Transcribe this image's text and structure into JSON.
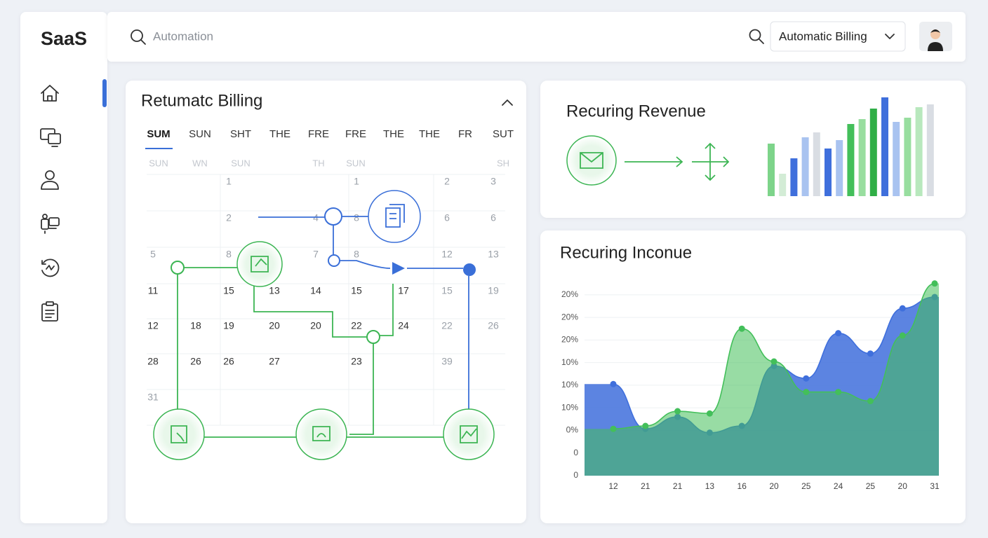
{
  "sidebar": {
    "logo": "SaaS"
  },
  "header": {
    "search_placeholder": "Automation",
    "dropdown": "Automatic Billing"
  },
  "calendar": {
    "title": "Retumatc Billing",
    "weekdays": [
      "SUM",
      "SUN",
      "SHT",
      "THE",
      "FRE",
      "FRE",
      "THE",
      "THE",
      "FR",
      "SUT"
    ],
    "sub_labels": [
      "SUN",
      "WN",
      "SUN",
      null,
      "TH",
      "SUN",
      null,
      null,
      null,
      "SH"
    ],
    "rows": [
      [
        null,
        null,
        "1",
        null,
        null,
        "1",
        null,
        "2",
        "3"
      ],
      [
        null,
        null,
        "2",
        null,
        "4",
        "8",
        null,
        "6",
        "6"
      ],
      [
        "5",
        null,
        "8",
        null,
        "7",
        "8",
        null,
        "12",
        "13"
      ],
      [
        "11",
        null,
        "15",
        "13",
        "14",
        "15",
        "17",
        "15",
        "19"
      ],
      [
        "12",
        "18",
        "19",
        "20",
        "20",
        "22",
        "24",
        "22",
        "26"
      ],
      [
        "28",
        "26",
        "26",
        "27",
        null,
        "23",
        null,
        "39",
        null
      ],
      [
        "31",
        null,
        null,
        null,
        null,
        null,
        null,
        null,
        null
      ]
    ]
  },
  "revenue_chart": {
    "type": "bar",
    "title": "Recuring Revenue",
    "values": [
      75,
      32,
      54,
      84,
      91,
      68,
      80,
      103,
      110,
      125,
      141,
      106,
      112,
      127,
      131
    ],
    "colors": [
      "#7dd48a",
      "#d3ecd6",
      "#3f6fdc",
      "#a9c3f0",
      "#d9dde3",
      "#3f6fdc",
      "#a9c3f0",
      "#43bf5a",
      "#98de9f",
      "#2fae46",
      "#3f6fdc",
      "#a9c3f0",
      "#98de9f",
      "#b8e8bd",
      "#d9dde3"
    ],
    "ylim": [
      0,
      150
    ]
  },
  "income_chart": {
    "type": "area",
    "title": "Recuring Inconue",
    "categories": [
      "12",
      "21",
      "21",
      "13",
      "16",
      "20",
      "25",
      "24",
      "25",
      "20",
      "31"
    ],
    "series": [
      {
        "color": "#3f6fdc",
        "values": [
          4.05,
          2.07,
          2.6,
          1.9,
          2.2,
          4.85,
          4.3,
          6.3,
          5.4,
          7.4,
          7.9
        ]
      },
      {
        "color": "#43bf5a",
        "values": [
          2.07,
          2.2,
          2.85,
          2.75,
          6.5,
          5.05,
          3.7,
          3.7,
          3.3,
          6.2,
          8.5
        ]
      }
    ],
    "ylim": [
      0,
      8.8
    ],
    "yticks": [
      {
        "value": 0,
        "label": "0"
      },
      {
        "value": 1,
        "label": "0"
      },
      {
        "value": 2,
        "label": "0%"
      },
      {
        "value": 3,
        "label": "10%"
      },
      {
        "value": 4,
        "label": "10%"
      },
      {
        "value": 5,
        "label": "10%"
      },
      {
        "value": 6,
        "label": "20%"
      },
      {
        "value": 7,
        "label": "20%"
      },
      {
        "value": 8,
        "label": "20%"
      }
    ],
    "grid": true
  }
}
